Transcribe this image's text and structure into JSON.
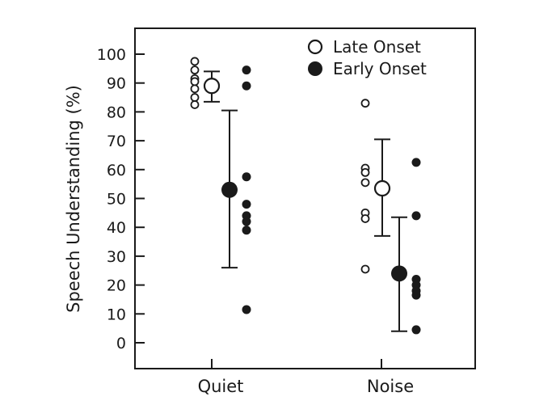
{
  "chart_data": {
    "type": "scatter",
    "xlabel": "",
    "ylabel": "Speech Understanding (%)",
    "categories": [
      "Quiet",
      "Noise"
    ],
    "ylim": [
      -10,
      108
    ],
    "yticks": [
      0,
      10,
      20,
      30,
      40,
      50,
      60,
      70,
      80,
      90,
      100
    ],
    "grid": false,
    "legend": {
      "position": "top-right",
      "labels": [
        "Late Onset",
        "Early Onset"
      ]
    },
    "series": [
      {
        "name": "Late Onset",
        "marker": "open-circle",
        "groups": [
          {
            "category": "Quiet",
            "individual": [
              97.5,
              94.5,
              91.5,
              90.5,
              88,
              85,
              82.5
            ],
            "mean": 89,
            "error": [
              83.5,
              94
            ]
          },
          {
            "category": "Noise",
            "individual": [
              83,
              60.5,
              59,
              55.5,
              45,
              43,
              25.5
            ],
            "mean": 53.5,
            "error": [
              37,
              70.5
            ]
          }
        ]
      },
      {
        "name": "Early Onset",
        "marker": "filled-circle",
        "groups": [
          {
            "category": "Quiet",
            "individual": [
              94.5,
              89,
              57.5,
              48,
              44,
              42,
              39,
              11.5
            ],
            "mean": 53,
            "error": [
              26,
              80.5
            ]
          },
          {
            "category": "Noise",
            "individual": [
              62.5,
              44,
              22,
              20,
              18,
              16.5,
              4.5
            ],
            "mean": 24,
            "error": [
              4,
              43.5
            ]
          }
        ]
      }
    ]
  }
}
